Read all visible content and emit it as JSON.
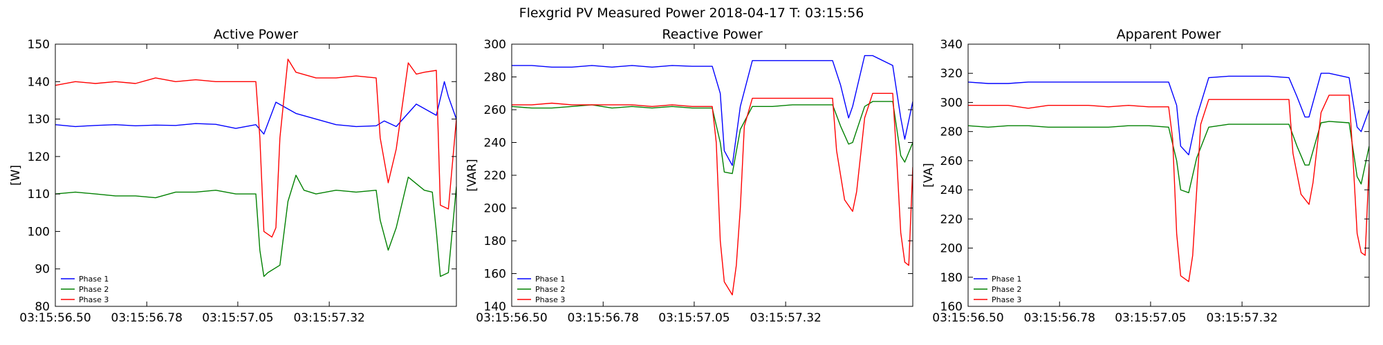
{
  "figure": {
    "suptitle": "Flexgrid PV Measured Power 2018-04-17 T: 03:15:56"
  },
  "chart_data": [
    {
      "type": "line",
      "title": "Active Power",
      "xlabel": "",
      "ylabel": "[W]",
      "ylim": [
        80,
        150
      ],
      "yticks": [
        80,
        90,
        100,
        110,
        120,
        130,
        140,
        150
      ],
      "xticks": [
        "03:15:56.50",
        "03:15:56.78",
        "03:15:57.05",
        "03:15:57.32"
      ],
      "xtick_positions": [
        0,
        0.228,
        0.455,
        0.683
      ],
      "legend": "lower-left",
      "grid": false,
      "series": [
        {
          "name": "Phase 1",
          "color": "#0000ff",
          "x": [
            0,
            0.05,
            0.1,
            0.15,
            0.2,
            0.25,
            0.3,
            0.35,
            0.4,
            0.45,
            0.5,
            0.52,
            0.55,
            0.6,
            0.65,
            0.7,
            0.75,
            0.8,
            0.82,
            0.85,
            0.9,
            0.95,
            0.97,
            0.98,
            1.0
          ],
          "y": [
            128.5,
            128.0,
            128.3,
            128.5,
            128.2,
            128.4,
            128.3,
            128.8,
            128.6,
            127.5,
            128.5,
            126.0,
            134.5,
            131.5,
            130.0,
            128.5,
            128.0,
            128.2,
            129.5,
            128.0,
            134.0,
            131.0,
            140.0,
            136.0,
            130.0
          ]
        },
        {
          "name": "Phase 2",
          "color": "#008000",
          "x": [
            0,
            0.05,
            0.1,
            0.15,
            0.2,
            0.25,
            0.3,
            0.35,
            0.4,
            0.45,
            0.5,
            0.51,
            0.52,
            0.53,
            0.56,
            0.58,
            0.6,
            0.62,
            0.65,
            0.7,
            0.75,
            0.8,
            0.81,
            0.83,
            0.85,
            0.88,
            0.92,
            0.94,
            0.95,
            0.96,
            0.98,
            1.0
          ],
          "y": [
            110.0,
            110.5,
            110.0,
            109.5,
            109.5,
            109.0,
            110.5,
            110.5,
            111.0,
            110.0,
            110.0,
            95.0,
            88.0,
            89.0,
            91.0,
            108.0,
            115.0,
            111.0,
            110.0,
            111.0,
            110.5,
            111.0,
            103.0,
            95.0,
            101.0,
            114.5,
            111.0,
            110.5,
            100.0,
            88.0,
            89.0,
            112.0
          ]
        },
        {
          "name": "Phase 3",
          "color": "#ff0000",
          "x": [
            0,
            0.05,
            0.1,
            0.15,
            0.2,
            0.25,
            0.3,
            0.35,
            0.4,
            0.45,
            0.5,
            0.51,
            0.52,
            0.54,
            0.55,
            0.56,
            0.58,
            0.6,
            0.65,
            0.7,
            0.75,
            0.8,
            0.81,
            0.83,
            0.85,
            0.88,
            0.9,
            0.92,
            0.95,
            0.96,
            0.98,
            1.0
          ],
          "y": [
            139.0,
            140.0,
            139.5,
            140.0,
            139.5,
            141.0,
            140.0,
            140.5,
            140.0,
            140.0,
            140.0,
            125.0,
            100.0,
            98.5,
            101.0,
            125.0,
            146.0,
            142.5,
            141.0,
            141.0,
            141.5,
            141.0,
            125.0,
            113.0,
            122.0,
            145.0,
            142.0,
            142.5,
            143.0,
            107.0,
            106.0,
            130.0
          ]
        }
      ]
    },
    {
      "type": "line",
      "title": "Reactive Power",
      "xlabel": "",
      "ylabel": "[VAR]",
      "ylim": [
        140,
        300
      ],
      "yticks": [
        140,
        160,
        180,
        200,
        220,
        240,
        260,
        280,
        300
      ],
      "xticks": [
        "03:15:56.50",
        "03:15:56.78",
        "03:15:57.05",
        "03:15:57.32"
      ],
      "xtick_positions": [
        0,
        0.228,
        0.455,
        0.683
      ],
      "legend": "lower-left",
      "grid": false,
      "series": [
        {
          "name": "Phase 1",
          "color": "#0000ff",
          "x": [
            0,
            0.05,
            0.1,
            0.15,
            0.2,
            0.25,
            0.3,
            0.35,
            0.4,
            0.45,
            0.5,
            0.52,
            0.53,
            0.55,
            0.57,
            0.6,
            0.65,
            0.7,
            0.75,
            0.8,
            0.82,
            0.84,
            0.85,
            0.88,
            0.9,
            0.95,
            0.97,
            0.98,
            1.0
          ],
          "y": [
            287.0,
            287.0,
            286.0,
            286.0,
            287.0,
            286.0,
            287.0,
            286.0,
            287.0,
            286.5,
            286.5,
            270.0,
            235.0,
            226.0,
            262.0,
            290.0,
            290.0,
            290.0,
            290.0,
            290.0,
            275.0,
            255.0,
            262.0,
            293.0,
            293.0,
            287.0,
            255.0,
            242.0,
            265.0
          ]
        },
        {
          "name": "Phase 2",
          "color": "#008000",
          "x": [
            0,
            0.05,
            0.1,
            0.15,
            0.2,
            0.25,
            0.3,
            0.35,
            0.4,
            0.45,
            0.5,
            0.52,
            0.53,
            0.55,
            0.57,
            0.6,
            0.65,
            0.7,
            0.75,
            0.8,
            0.82,
            0.84,
            0.85,
            0.88,
            0.9,
            0.95,
            0.97,
            0.98,
            1.0
          ],
          "y": [
            262.0,
            261.0,
            261.0,
            262.0,
            263.0,
            261.0,
            262.0,
            261.0,
            262.0,
            261.0,
            261.0,
            240.0,
            222.0,
            221.0,
            248.0,
            262.0,
            262.0,
            263.0,
            263.0,
            263.0,
            250.0,
            239.0,
            240.0,
            262.0,
            265.0,
            265.0,
            232.0,
            228.0,
            240.0
          ]
        },
        {
          "name": "Phase 3",
          "color": "#ff0000",
          "x": [
            0,
            0.05,
            0.1,
            0.15,
            0.2,
            0.25,
            0.3,
            0.35,
            0.4,
            0.45,
            0.5,
            0.51,
            0.52,
            0.53,
            0.55,
            0.56,
            0.57,
            0.58,
            0.6,
            0.65,
            0.7,
            0.75,
            0.8,
            0.81,
            0.83,
            0.85,
            0.86,
            0.88,
            0.9,
            0.95,
            0.96,
            0.97,
            0.98,
            0.99,
            1.0
          ],
          "y": [
            263.0,
            263.0,
            264.0,
            263.0,
            263.0,
            263.0,
            263.0,
            262.0,
            263.0,
            262.0,
            262.0,
            240.0,
            180.0,
            155.0,
            147.0,
            165.0,
            200.0,
            250.0,
            267.0,
            267.0,
            267.0,
            267.0,
            267.0,
            235.0,
            205.0,
            198.0,
            210.0,
            255.0,
            270.0,
            270.0,
            230.0,
            185.0,
            167.0,
            165.0,
            225.0
          ]
        }
      ]
    },
    {
      "type": "line",
      "title": "Apparent Power",
      "xlabel": "",
      "ylabel": "[VA]",
      "ylim": [
        160,
        340
      ],
      "yticks": [
        160,
        180,
        200,
        220,
        240,
        260,
        280,
        300,
        320,
        340
      ],
      "xticks": [
        "03:15:56.50",
        "03:15:56.78",
        "03:15:57.05",
        "03:15:57.32"
      ],
      "xtick_positions": [
        0,
        0.228,
        0.455,
        0.683
      ],
      "legend": "lower-left",
      "grid": false,
      "series": [
        {
          "name": "Phase 1",
          "color": "#0000ff",
          "x": [
            0,
            0.05,
            0.1,
            0.15,
            0.2,
            0.25,
            0.3,
            0.35,
            0.4,
            0.45,
            0.5,
            0.52,
            0.53,
            0.55,
            0.57,
            0.6,
            0.65,
            0.7,
            0.75,
            0.8,
            0.82,
            0.84,
            0.85,
            0.88,
            0.9,
            0.95,
            0.97,
            0.98,
            1.0
          ],
          "y": [
            314.0,
            313.0,
            313.0,
            314.0,
            314.0,
            314.0,
            314.0,
            314.0,
            314.0,
            314.0,
            314.0,
            298.0,
            270.0,
            264.0,
            290.0,
            317.0,
            318.0,
            318.0,
            318.0,
            317.0,
            304.0,
            290.0,
            290.0,
            320.0,
            320.0,
            317.0,
            283.0,
            280.0,
            295.0
          ]
        },
        {
          "name": "Phase 2",
          "color": "#008000",
          "x": [
            0,
            0.05,
            0.1,
            0.15,
            0.2,
            0.25,
            0.3,
            0.35,
            0.4,
            0.45,
            0.5,
            0.52,
            0.53,
            0.55,
            0.57,
            0.6,
            0.65,
            0.7,
            0.75,
            0.8,
            0.82,
            0.84,
            0.85,
            0.88,
            0.9,
            0.95,
            0.97,
            0.98,
            1.0
          ],
          "y": [
            284.0,
            283.0,
            284.0,
            284.0,
            283.0,
            283.0,
            283.0,
            283.0,
            284.0,
            284.0,
            283.0,
            260.0,
            240.0,
            238.0,
            262.0,
            283.0,
            285.0,
            285.0,
            285.0,
            285.0,
            270.0,
            257.0,
            257.0,
            286.0,
            287.0,
            286.0,
            249.0,
            244.0,
            270.0
          ]
        },
        {
          "name": "Phase 3",
          "color": "#ff0000",
          "x": [
            0,
            0.05,
            0.1,
            0.15,
            0.2,
            0.25,
            0.3,
            0.35,
            0.4,
            0.45,
            0.5,
            0.51,
            0.52,
            0.53,
            0.55,
            0.56,
            0.57,
            0.58,
            0.6,
            0.65,
            0.7,
            0.75,
            0.8,
            0.81,
            0.83,
            0.85,
            0.86,
            0.88,
            0.9,
            0.95,
            0.96,
            0.97,
            0.98,
            0.99,
            1.0
          ],
          "y": [
            298.0,
            298.0,
            298.0,
            296.0,
            298.0,
            298.0,
            298.0,
            297.0,
            298.0,
            297.0,
            297.0,
            275.0,
            210.0,
            181.0,
            177.0,
            195.0,
            240.0,
            285.0,
            302.0,
            302.0,
            302.0,
            302.0,
            302.0,
            265.0,
            237.0,
            230.0,
            245.0,
            293.0,
            305.0,
            305.0,
            260.0,
            210.0,
            197.0,
            195.0,
            258.0
          ]
        }
      ]
    }
  ]
}
